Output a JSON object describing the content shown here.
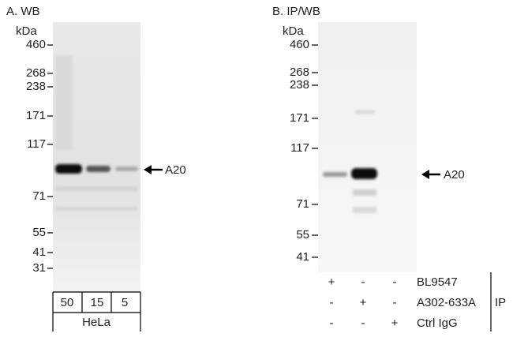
{
  "panels": [
    {
      "title": "A. WB",
      "unit": "kDa",
      "markers": [
        "460",
        "268",
        "238",
        "171",
        "117",
        "71",
        "55",
        "41",
        "31"
      ],
      "band_label": "A20",
      "lanes": [
        "50",
        "15",
        "5"
      ],
      "sample": "HeLa"
    },
    {
      "title": "B. IP/WB",
      "unit": "kDa",
      "markers": [
        "460",
        "268",
        "238",
        "171",
        "117",
        "71",
        "55",
        "41"
      ],
      "band_label": "A20",
      "ip_rows": [
        {
          "antibody": "BL9547",
          "signs": [
            "+",
            "-",
            "-"
          ]
        },
        {
          "antibody": "A302-633A",
          "signs": [
            "-",
            "+",
            "-"
          ]
        },
        {
          "antibody": "Ctrl IgG",
          "signs": [
            "-",
            "-",
            "+"
          ]
        }
      ],
      "ip_label": "IP"
    }
  ]
}
